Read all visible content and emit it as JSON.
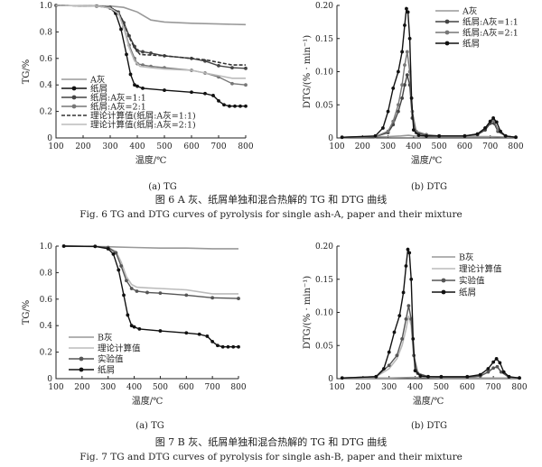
{
  "figures": [
    {
      "caption_cn": "图 6   A 灰、纸屑单独和混合热解的 TG 和 DTG 曲线",
      "caption_en": "Fig. 6    TG and DTG curves of pyrolysis for single ash-A, paper and their mixture"
    },
    {
      "caption_cn": "图 7   B 灰、纸屑单独和混合热解的 TG 和 DTG 曲线",
      "caption_en": "Fig. 7    TG and DTG curves of pyrolysis for single ash-B, paper and their mixture"
    }
  ],
  "chart_data": [
    {
      "id": "fig6a",
      "type": "line",
      "subcaption": "(a) TG",
      "xlabel": "温度/℃",
      "ylabel": "TG/%",
      "xlim": [
        100,
        800
      ],
      "ylim": [
        0,
        1.0
      ],
      "xticks": [
        100,
        200,
        300,
        400,
        500,
        600,
        700,
        800
      ],
      "yticks": [
        "0",
        "0.2",
        "0.4",
        "0.6",
        "0.8",
        "1.0"
      ],
      "legend_position": "bottom-left",
      "series": [
        {
          "name": "A灰",
          "color": "#999999",
          "marker": "none",
          "x": [
            100,
            300,
            350,
            400,
            450,
            500,
            600,
            700,
            800
          ],
          "y": [
            1.0,
            0.995,
            0.985,
            0.95,
            0.89,
            0.875,
            0.865,
            0.86,
            0.855
          ]
        },
        {
          "name": "纸屑",
          "color": "#111111",
          "marker": "dot",
          "x": [
            100,
            250,
            300,
            320,
            340,
            360,
            375,
            390,
            400,
            420,
            500,
            600,
            650,
            680,
            700,
            720,
            740,
            760,
            780,
            800
          ],
          "y": [
            1.0,
            0.995,
            0.98,
            0.94,
            0.82,
            0.63,
            0.48,
            0.4,
            0.39,
            0.375,
            0.36,
            0.345,
            0.335,
            0.32,
            0.28,
            0.25,
            0.24,
            0.24,
            0.24,
            0.24
          ]
        },
        {
          "name": "纸屑:A灰=1:1",
          "color": "#444444",
          "marker": "dot",
          "x": [
            100,
            250,
            300,
            330,
            350,
            370,
            390,
            400,
            420,
            450,
            500,
            600,
            650,
            700,
            750,
            800
          ],
          "y": [
            1.0,
            0.995,
            0.985,
            0.95,
            0.87,
            0.77,
            0.69,
            0.66,
            0.65,
            0.64,
            0.62,
            0.6,
            0.58,
            0.545,
            0.53,
            0.525
          ]
        },
        {
          "name": "纸屑:A灰=2:1",
          "color": "#777777",
          "marker": "dot",
          "x": [
            100,
            250,
            300,
            330,
            350,
            370,
            390,
            400,
            420,
            450,
            500,
            600,
            650,
            700,
            750,
            800
          ],
          "y": [
            1.0,
            0.995,
            0.98,
            0.94,
            0.84,
            0.7,
            0.6,
            0.56,
            0.55,
            0.54,
            0.53,
            0.51,
            0.49,
            0.46,
            0.41,
            0.4
          ]
        },
        {
          "name": "理论计算值(纸屑:A灰=1:1)",
          "color": "#333333",
          "marker": "dash",
          "x": [
            100,
            250,
            300,
            330,
            350,
            370,
            390,
            410,
            450,
            500,
            600,
            650,
            700,
            750,
            800
          ],
          "y": [
            1.0,
            0.995,
            0.985,
            0.95,
            0.87,
            0.76,
            0.68,
            0.63,
            0.625,
            0.62,
            0.6,
            0.59,
            0.57,
            0.55,
            0.55
          ]
        },
        {
          "name": "理论计算值(纸屑:A灰=2:1)",
          "color": "#bbbbbb",
          "marker": "none",
          "x": [
            100,
            250,
            300,
            330,
            350,
            370,
            390,
            410,
            450,
            500,
            600,
            650,
            700,
            750,
            800
          ],
          "y": [
            1.0,
            0.995,
            0.98,
            0.94,
            0.83,
            0.68,
            0.58,
            0.54,
            0.53,
            0.52,
            0.51,
            0.49,
            0.47,
            0.45,
            0.45
          ]
        }
      ]
    },
    {
      "id": "fig6b",
      "type": "line",
      "subcaption": "(b) DTG",
      "xlabel": "温度/℃",
      "ylabel": "DTG/(% · min⁻¹)",
      "xlim": [
        100,
        800
      ],
      "ylim": [
        0,
        0.2
      ],
      "xticks": [
        100,
        200,
        300,
        400,
        500,
        600,
        700,
        800
      ],
      "yticks": [
        "0",
        "0.05",
        "0.10",
        "0.15",
        "0.20"
      ],
      "legend_position": "top-right",
      "series": [
        {
          "name": "A灰",
          "color": "#999999",
          "marker": "none",
          "x": [
            120,
            300,
            350,
            380,
            400,
            450,
            500,
            600,
            700,
            800
          ],
          "y": [
            0.001,
            0.002,
            0.003,
            0.004,
            0.003,
            0.002,
            0.002,
            0.002,
            0.002,
            0.001
          ]
        },
        {
          "name": "纸屑:A灰=1:1",
          "color": "#444444",
          "marker": "dot",
          "x": [
            120,
            250,
            300,
            320,
            340,
            355,
            365,
            375,
            385,
            395,
            410,
            450,
            500,
            600,
            650,
            680,
            700,
            715,
            730,
            760,
            800
          ],
          "y": [
            0.001,
            0.002,
            0.008,
            0.02,
            0.04,
            0.06,
            0.08,
            0.095,
            0.08,
            0.03,
            0.008,
            0.004,
            0.003,
            0.003,
            0.005,
            0.012,
            0.022,
            0.022,
            0.01,
            0.003,
            0.001
          ]
        },
        {
          "name": "纸屑:A灰=2:1",
          "color": "#777777",
          "marker": "dot",
          "x": [
            120,
            250,
            300,
            320,
            340,
            355,
            365,
            375,
            385,
            395,
            410,
            450,
            500,
            600,
            650,
            680,
            700,
            715,
            730,
            760,
            800
          ],
          "y": [
            0.001,
            0.002,
            0.01,
            0.025,
            0.05,
            0.08,
            0.11,
            0.13,
            0.1,
            0.04,
            0.01,
            0.005,
            0.003,
            0.003,
            0.006,
            0.015,
            0.025,
            0.026,
            0.012,
            0.003,
            0.001
          ]
        },
        {
          "name": "纸屑",
          "color": "#111111",
          "marker": "dot",
          "x": [
            120,
            250,
            280,
            300,
            320,
            340,
            355,
            365,
            372,
            378,
            385,
            392,
            400,
            420,
            450,
            500,
            600,
            650,
            680,
            700,
            712,
            725,
            740,
            760,
            800
          ],
          "y": [
            0.001,
            0.003,
            0.015,
            0.04,
            0.075,
            0.1,
            0.13,
            0.17,
            0.195,
            0.19,
            0.15,
            0.06,
            0.012,
            0.004,
            0.003,
            0.003,
            0.003,
            0.006,
            0.015,
            0.025,
            0.03,
            0.024,
            0.01,
            0.003,
            0.001
          ]
        }
      ]
    },
    {
      "id": "fig7a",
      "type": "line",
      "subcaption": "(a) TG",
      "xlabel": "温度/℃",
      "ylabel": "TG/%",
      "xlim": [
        100,
        800
      ],
      "ylim": [
        0,
        1.0
      ],
      "xticks": [
        100,
        200,
        300,
        400,
        500,
        600,
        700,
        800
      ],
      "yticks": [
        "0",
        "0.2",
        "0.4",
        "0.6",
        "0.8",
        "1.0"
      ],
      "legend_position": "bottom-left",
      "series": [
        {
          "name": "B灰",
          "color": "#999999",
          "marker": "none",
          "x": [
            130,
            300,
            400,
            500,
            600,
            700,
            800
          ],
          "y": [
            1.0,
            0.995,
            0.99,
            0.985,
            0.985,
            0.98,
            0.98
          ]
        },
        {
          "name": "理论计算值",
          "color": "#bbbbbb",
          "marker": "none",
          "x": [
            130,
            250,
            300,
            330,
            350,
            370,
            390,
            410,
            450,
            500,
            600,
            700,
            800
          ],
          "y": [
            1.0,
            0.998,
            0.99,
            0.96,
            0.88,
            0.77,
            0.71,
            0.69,
            0.685,
            0.68,
            0.67,
            0.64,
            0.64
          ]
        },
        {
          "name": "实验值",
          "color": "#555555",
          "marker": "dot",
          "x": [
            130,
            250,
            300,
            330,
            350,
            370,
            390,
            410,
            450,
            500,
            600,
            700,
            800
          ],
          "y": [
            1.0,
            0.998,
            0.99,
            0.95,
            0.85,
            0.74,
            0.68,
            0.66,
            0.65,
            0.645,
            0.63,
            0.61,
            0.605
          ]
        },
        {
          "name": "纸屑",
          "color": "#111111",
          "marker": "dot",
          "x": [
            130,
            250,
            300,
            320,
            340,
            360,
            375,
            390,
            400,
            420,
            500,
            600,
            650,
            680,
            700,
            720,
            740,
            760,
            780,
            800
          ],
          "y": [
            1.0,
            0.998,
            0.98,
            0.94,
            0.82,
            0.63,
            0.48,
            0.4,
            0.39,
            0.375,
            0.36,
            0.345,
            0.335,
            0.32,
            0.28,
            0.25,
            0.24,
            0.24,
            0.24,
            0.24
          ]
        }
      ]
    },
    {
      "id": "fig7b",
      "type": "line",
      "subcaption": "(b) DTG",
      "xlabel": "温度/℃",
      "ylabel": "DTG/(% · min⁻¹)",
      "xlim": [
        100,
        800
      ],
      "ylim": [
        0,
        0.2
      ],
      "xticks": [
        100,
        200,
        300,
        400,
        500,
        600,
        700,
        800
      ],
      "yticks": [
        "0",
        "0.05",
        "0.10",
        "0.15",
        "0.20"
      ],
      "legend_position": "top-right",
      "series": [
        {
          "name": "B灰",
          "color": "#999999",
          "marker": "none",
          "x": [
            120,
            300,
            400,
            500,
            600,
            700,
            800
          ],
          "y": [
            0.001,
            0.001,
            0.002,
            0.001,
            0.001,
            0.001,
            0.001
          ]
        },
        {
          "name": "理论计算值",
          "color": "#bbbbbb",
          "marker": "none",
          "x": [
            120,
            250,
            300,
            330,
            350,
            365,
            375,
            385,
            395,
            410,
            450,
            500,
            600,
            650,
            680,
            700,
            715,
            730,
            760,
            800
          ],
          "y": [
            0.001,
            0.003,
            0.015,
            0.03,
            0.05,
            0.075,
            0.095,
            0.08,
            0.03,
            0.008,
            0.003,
            0.002,
            0.002,
            0.004,
            0.01,
            0.016,
            0.018,
            0.01,
            0.002,
            0.001
          ]
        },
        {
          "name": "实验值",
          "color": "#555555",
          "marker": "dot",
          "x": [
            120,
            250,
            300,
            330,
            350,
            365,
            375,
            385,
            395,
            410,
            450,
            500,
            600,
            650,
            680,
            700,
            715,
            730,
            760,
            800
          ],
          "y": [
            0.001,
            0.003,
            0.02,
            0.035,
            0.06,
            0.09,
            0.11,
            0.09,
            0.035,
            0.008,
            0.003,
            0.002,
            0.002,
            0.004,
            0.01,
            0.016,
            0.018,
            0.01,
            0.002,
            0.001
          ]
        },
        {
          "name": "纸屑",
          "color": "#111111",
          "marker": "dot",
          "x": [
            120,
            250,
            280,
            300,
            320,
            340,
            355,
            365,
            372,
            378,
            385,
            392,
            400,
            420,
            450,
            500,
            600,
            650,
            680,
            700,
            712,
            725,
            740,
            760,
            800
          ],
          "y": [
            0.001,
            0.003,
            0.015,
            0.04,
            0.07,
            0.095,
            0.13,
            0.17,
            0.195,
            0.19,
            0.15,
            0.06,
            0.012,
            0.004,
            0.003,
            0.003,
            0.003,
            0.006,
            0.015,
            0.025,
            0.03,
            0.024,
            0.01,
            0.003,
            0.001
          ]
        }
      ]
    }
  ]
}
